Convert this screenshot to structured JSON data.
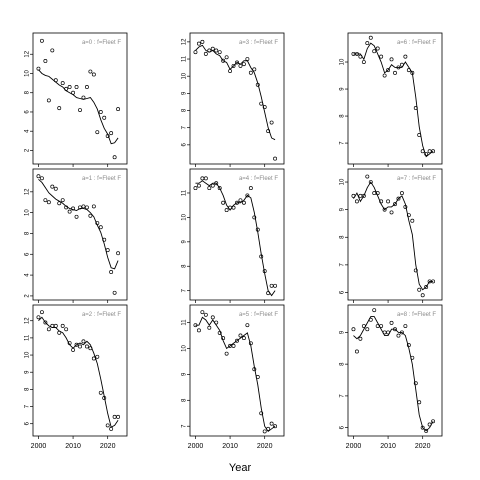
{
  "chart_data": {
    "type": "scatter",
    "layout": "3x3 panel grid, each panel: observed points (circles) and fitted line",
    "xlabel": "Year",
    "ylabel": "",
    "x_ticks": [
      2000,
      2010,
      2020
    ],
    "x_range": [
      1999,
      2025
    ],
    "panels": [
      {
        "label": "a=0 : f=Fleet F",
        "ylim": [
          0.8,
          14
        ],
        "y_ticks": [
          2,
          4,
          6,
          8,
          10,
          12
        ],
        "observed": {
          "x": [
            2000,
            2001,
            2002,
            2003,
            2004,
            2005,
            2006,
            2007,
            2008,
            2009,
            2010,
            2011,
            2012,
            2013,
            2014,
            2015,
            2016,
            2017,
            2018,
            2019,
            2020,
            2021,
            2022,
            2023
          ],
          "y": [
            10.5,
            13.4,
            11.3,
            7.2,
            12.4,
            9.3,
            6.4,
            9.0,
            8.4,
            8.6,
            8.0,
            8.6,
            6.2,
            7.5,
            8.6,
            10.2,
            9.9,
            3.9,
            6.0,
            5.4,
            3.5,
            3.8,
            1.3,
            6.3
          ]
        },
        "fitted": {
          "x": [
            2000,
            2001,
            2002,
            2003,
            2004,
            2005,
            2006,
            2007,
            2008,
            2009,
            2010,
            2011,
            2012,
            2013,
            2014,
            2015,
            2016,
            2017,
            2018,
            2019,
            2020,
            2021,
            2022,
            2023
          ],
          "y": [
            10.4,
            10.0,
            9.8,
            9.7,
            9.4,
            9.1,
            8.8,
            8.6,
            8.2,
            8.0,
            7.8,
            7.5,
            7.4,
            7.3,
            7.4,
            7.5,
            7.0,
            6.3,
            5.2,
            4.3,
            3.7,
            2.7,
            2.8,
            3.3
          ]
        }
      },
      {
        "label": "a=3 : f=Fleet F",
        "ylim": [
          5.0,
          12.4
        ],
        "y_ticks": [
          6,
          7,
          8,
          9,
          10,
          11,
          12
        ],
        "observed": {
          "x": [
            2000,
            2001,
            2002,
            2003,
            2004,
            2005,
            2006,
            2007,
            2008,
            2009,
            2010,
            2011,
            2012,
            2013,
            2014,
            2015,
            2016,
            2017,
            2018,
            2019,
            2020,
            2021,
            2022,
            2023
          ],
          "y": [
            11.4,
            11.9,
            12.0,
            11.3,
            11.5,
            11.6,
            11.5,
            11.4,
            10.9,
            11.1,
            10.3,
            10.6,
            10.8,
            10.6,
            10.7,
            11.0,
            10.2,
            10.4,
            9.5,
            8.4,
            8.2,
            6.8,
            7.3,
            5.2
          ]
        },
        "fitted": {
          "x": [
            2000,
            2001,
            2002,
            2003,
            2004,
            2005,
            2006,
            2007,
            2008,
            2009,
            2010,
            2011,
            2012,
            2013,
            2014,
            2015,
            2016,
            2017,
            2018,
            2019,
            2020,
            2021,
            2022,
            2023
          ],
          "y": [
            11.5,
            11.7,
            11.8,
            11.5,
            11.4,
            11.5,
            11.3,
            11.2,
            10.9,
            10.8,
            10.4,
            10.6,
            10.8,
            10.7,
            10.9,
            10.9,
            10.5,
            10.2,
            9.6,
            8.8,
            7.9,
            7.0,
            6.4,
            6.3
          ]
        }
      },
      {
        "label": "a=6 : f=Fleet F",
        "ylim": [
          6.3,
          11.0
        ],
        "y_ticks": [
          7,
          8,
          9,
          10
        ],
        "observed": {
          "x": [
            2000,
            2001,
            2002,
            2003,
            2004,
            2005,
            2006,
            2007,
            2008,
            2009,
            2010,
            2011,
            2012,
            2013,
            2014,
            2015,
            2016,
            2017,
            2018,
            2019,
            2020,
            2021,
            2022,
            2023
          ],
          "y": [
            10.3,
            10.3,
            10.2,
            10.0,
            10.7,
            10.9,
            10.4,
            10.5,
            10.2,
            9.5,
            9.7,
            10.1,
            9.6,
            9.8,
            9.9,
            10.2,
            9.7,
            9.6,
            8.3,
            7.3,
            6.7,
            6.6,
            6.7,
            6.7
          ]
        },
        "fitted": {
          "x": [
            2000,
            2001,
            2002,
            2003,
            2004,
            2005,
            2006,
            2007,
            2008,
            2009,
            2010,
            2011,
            2012,
            2013,
            2014,
            2015,
            2016,
            2017,
            2018,
            2019,
            2020,
            2021,
            2022,
            2023
          ],
          "y": [
            10.3,
            10.3,
            10.3,
            10.1,
            10.5,
            10.7,
            10.6,
            10.3,
            10.0,
            9.6,
            9.7,
            9.9,
            9.8,
            9.8,
            9.8,
            10.0,
            9.8,
            9.6,
            8.7,
            7.6,
            6.9,
            6.5,
            6.6,
            6.7
          ]
        }
      },
      {
        "label": "a=1 : f=Fleet F",
        "ylim": [
          1.8,
          14.0
        ],
        "y_ticks": [
          2,
          4,
          6,
          8,
          10,
          12
        ],
        "observed": {
          "x": [
            2000,
            2001,
            2002,
            2003,
            2004,
            2005,
            2006,
            2007,
            2008,
            2009,
            2010,
            2011,
            2012,
            2013,
            2014,
            2015,
            2016,
            2017,
            2018,
            2019,
            2020,
            2021,
            2022,
            2023
          ],
          "y": [
            13.5,
            13.3,
            11.2,
            11.0,
            12.5,
            12.3,
            10.9,
            11.2,
            10.5,
            10.1,
            10.4,
            9.6,
            10.5,
            10.6,
            10.5,
            9.7,
            10.6,
            9.0,
            8.6,
            7.4,
            6.4,
            4.3,
            2.3,
            6.1
          ]
        },
        "fitted": {
          "x": [
            2000,
            2001,
            2002,
            2003,
            2004,
            2005,
            2006,
            2007,
            2008,
            2009,
            2010,
            2011,
            2012,
            2013,
            2014,
            2015,
            2016,
            2017,
            2018,
            2019,
            2020,
            2021,
            2022,
            2023
          ],
          "y": [
            13.2,
            12.9,
            12.4,
            11.9,
            11.6,
            11.3,
            11.1,
            10.9,
            10.6,
            10.4,
            10.3,
            10.2,
            10.4,
            10.4,
            10.3,
            10.0,
            9.6,
            8.8,
            8.1,
            7.0,
            5.7,
            4.7,
            4.6,
            5.4
          ]
        }
      },
      {
        "label": "a=4 : f=Fleet F",
        "ylim": [
          6.7,
          11.9
        ],
        "y_ticks": [
          7,
          8,
          9,
          10,
          11
        ],
        "observed": {
          "x": [
            2000,
            2001,
            2002,
            2003,
            2004,
            2005,
            2006,
            2007,
            2008,
            2009,
            2010,
            2011,
            2012,
            2013,
            2014,
            2015,
            2016,
            2017,
            2018,
            2019,
            2020,
            2021,
            2022,
            2023
          ],
          "y": [
            11.2,
            11.3,
            11.6,
            11.6,
            11.2,
            11.3,
            11.4,
            11.2,
            10.6,
            10.3,
            10.4,
            10.4,
            10.6,
            10.7,
            10.6,
            10.9,
            11.2,
            10.0,
            9.5,
            8.4,
            7.8,
            6.9,
            7.2,
            7.2
          ]
        },
        "fitted": {
          "x": [
            2000,
            2001,
            2002,
            2003,
            2004,
            2005,
            2006,
            2007,
            2008,
            2009,
            2010,
            2011,
            2012,
            2013,
            2014,
            2015,
            2016,
            2017,
            2018,
            2019,
            2020,
            2021,
            2022,
            2023
          ],
          "y": [
            11.4,
            11.4,
            11.5,
            11.4,
            11.3,
            11.4,
            11.4,
            11.2,
            10.9,
            10.5,
            10.3,
            10.5,
            10.6,
            10.6,
            10.7,
            10.9,
            10.8,
            10.2,
            9.4,
            8.5,
            7.7,
            7.0,
            6.8,
            7.0
          ]
        }
      },
      {
        "label": "a=7 : f=Fleet F",
        "ylim": [
          5.8,
          10.4
        ],
        "y_ticks": [
          6,
          7,
          8,
          9,
          10
        ],
        "observed": {
          "x": [
            2000,
            2001,
            2002,
            2003,
            2004,
            2005,
            2006,
            2007,
            2008,
            2009,
            2010,
            2011,
            2012,
            2013,
            2014,
            2015,
            2016,
            2017,
            2018,
            2019,
            2020,
            2021,
            2022,
            2023
          ],
          "y": [
            9.5,
            9.3,
            9.5,
            9.5,
            10.2,
            10.0,
            9.6,
            9.6,
            9.3,
            9.0,
            9.3,
            8.9,
            9.2,
            9.4,
            9.6,
            9.1,
            8.8,
            8.6,
            6.8,
            6.1,
            5.9,
            6.2,
            6.4,
            6.4
          ]
        },
        "fitted": {
          "x": [
            2000,
            2001,
            2002,
            2003,
            2004,
            2005,
            2006,
            2007,
            2008,
            2009,
            2010,
            2011,
            2012,
            2013,
            2014,
            2015,
            2016,
            2017,
            2018,
            2019,
            2020,
            2021,
            2022,
            2023
          ],
          "y": [
            9.4,
            9.6,
            9.3,
            9.5,
            9.8,
            10.0,
            9.8,
            9.5,
            9.2,
            9.0,
            9.1,
            9.1,
            9.2,
            9.4,
            9.5,
            9.2,
            8.6,
            8.1,
            7.0,
            6.3,
            6.1,
            6.2,
            6.4,
            6.4
          ]
        }
      },
      {
        "label": "a=2 : f=Fleet F",
        "ylim": [
          5.4,
          12.8
        ],
        "y_ticks": [
          6,
          7,
          8,
          9,
          10,
          11,
          12
        ],
        "observed": {
          "x": [
            2000,
            2001,
            2002,
            2003,
            2004,
            2005,
            2006,
            2007,
            2008,
            2009,
            2010,
            2011,
            2012,
            2013,
            2014,
            2015,
            2016,
            2017,
            2018,
            2019,
            2020,
            2021,
            2022,
            2023
          ],
          "y": [
            12.2,
            12.5,
            11.9,
            11.5,
            11.7,
            11.7,
            11.3,
            11.7,
            11.5,
            10.7,
            10.3,
            10.6,
            10.5,
            10.8,
            10.5,
            10.4,
            9.8,
            9.9,
            7.8,
            7.5,
            5.9,
            5.7,
            6.4,
            6.4
          ]
        },
        "fitted": {
          "x": [
            2000,
            2001,
            2002,
            2003,
            2004,
            2005,
            2006,
            2007,
            2008,
            2009,
            2010,
            2011,
            2012,
            2013,
            2014,
            2015,
            2016,
            2017,
            2018,
            2019,
            2020,
            2021,
            2022,
            2023
          ],
          "y": [
            12.0,
            12.2,
            11.9,
            11.7,
            11.6,
            11.6,
            11.4,
            11.3,
            11.0,
            10.6,
            10.4,
            10.6,
            10.7,
            10.6,
            10.8,
            10.6,
            10.1,
            9.5,
            8.6,
            7.6,
            6.6,
            5.8,
            5.9,
            6.2
          ]
        }
      },
      {
        "label": "a=5 : f=Fleet F",
        "ylim": [
          6.7,
          11.6
        ],
        "y_ticks": [
          7,
          8,
          9,
          10,
          11
        ],
        "observed": {
          "x": [
            2000,
            2001,
            2002,
            2003,
            2004,
            2005,
            2006,
            2007,
            2008,
            2009,
            2010,
            2011,
            2012,
            2013,
            2014,
            2015,
            2016,
            2017,
            2018,
            2019,
            2020,
            2021,
            2022,
            2023
          ],
          "y": [
            10.9,
            10.7,
            11.4,
            11.3,
            10.8,
            11.2,
            11.0,
            10.6,
            10.4,
            9.8,
            10.1,
            10.1,
            10.3,
            10.5,
            10.4,
            10.9,
            10.2,
            9.2,
            8.9,
            7.5,
            6.8,
            6.9,
            7.1,
            7.0
          ]
        },
        "fitted": {
          "x": [
            2000,
            2001,
            2002,
            2003,
            2004,
            2005,
            2006,
            2007,
            2008,
            2009,
            2010,
            2011,
            2012,
            2013,
            2014,
            2015,
            2016,
            2017,
            2018,
            2019,
            2020,
            2021,
            2022,
            2023
          ],
          "y": [
            10.9,
            10.9,
            11.2,
            11.1,
            10.9,
            11.1,
            10.9,
            10.7,
            10.3,
            10.0,
            10.1,
            10.2,
            10.3,
            10.4,
            10.5,
            10.6,
            10.1,
            9.3,
            8.6,
            7.7,
            7.0,
            6.8,
            6.9,
            7.0
          ]
        }
      },
      {
        "label": "a=8 : f=Fleet F",
        "ylim": [
          5.8,
          9.8
        ],
        "y_ticks": [
          6,
          7,
          8,
          9
        ],
        "observed": {
          "x": [
            2000,
            2001,
            2002,
            2003,
            2004,
            2005,
            2006,
            2007,
            2008,
            2009,
            2010,
            2011,
            2012,
            2013,
            2014,
            2015,
            2016,
            2017,
            2018,
            2019,
            2020,
            2021,
            2022,
            2023
          ],
          "y": [
            9.1,
            8.4,
            8.8,
            9.2,
            9.1,
            9.4,
            9.7,
            9.2,
            9.2,
            9.0,
            9.0,
            9.3,
            9.1,
            8.9,
            9.0,
            9.2,
            8.6,
            8.2,
            7.4,
            6.8,
            6.0,
            5.9,
            6.1,
            6.2
          ]
        },
        "fitted": {
          "x": [
            2000,
            2001,
            2002,
            2003,
            2004,
            2005,
            2006,
            2007,
            2008,
            2009,
            2010,
            2011,
            2012,
            2013,
            2014,
            2015,
            2016,
            2017,
            2018,
            2019,
            2020,
            2021,
            2022,
            2023
          ],
          "y": [
            8.9,
            8.8,
            8.9,
            9.1,
            9.3,
            9.5,
            9.5,
            9.3,
            9.1,
            8.9,
            8.9,
            9.1,
            9.1,
            9.0,
            9.0,
            8.9,
            8.5,
            8.0,
            7.2,
            6.4,
            6.0,
            5.9,
            6.0,
            6.2
          ]
        }
      }
    ]
  }
}
